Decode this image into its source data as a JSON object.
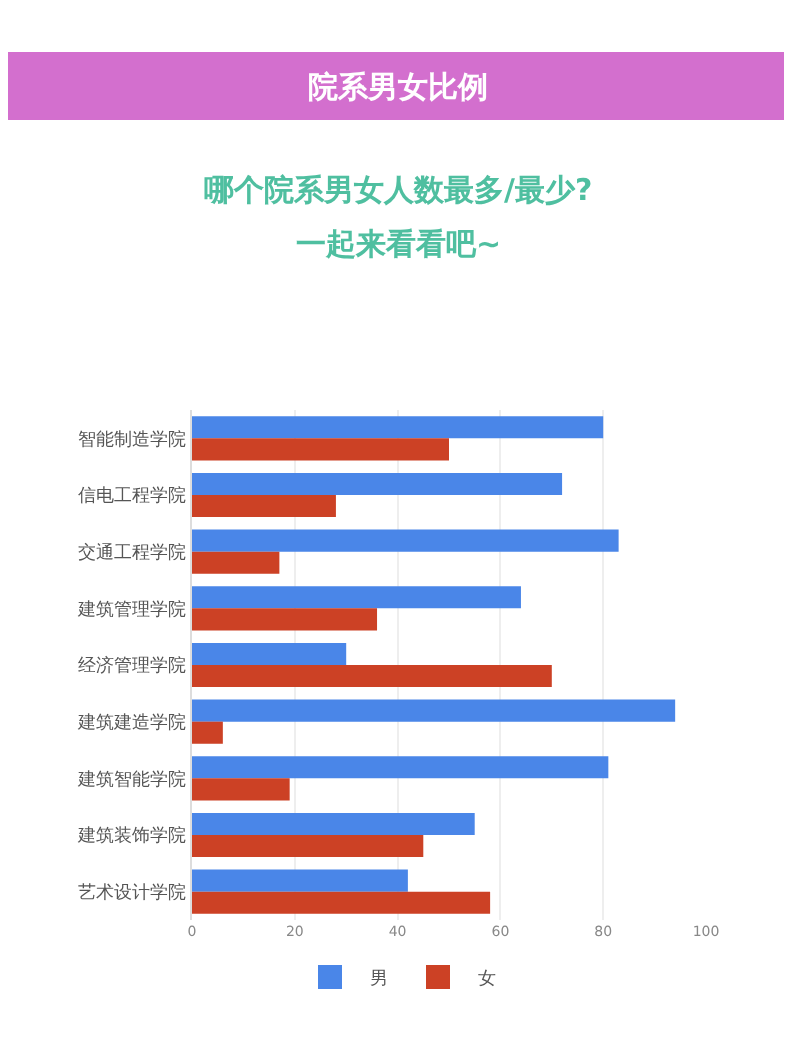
{
  "chart_data": {
    "type": "bar",
    "orientation": "horizontal",
    "title": "院系男女比例",
    "subtitle": "哪个院系男女人数最多/最少?\n一起来看看吧~",
    "categories": [
      "智能制造学院",
      "信电工程学院",
      "交通工程学院",
      "建筑管理学院",
      "经济管理学院",
      "建筑建造学院",
      "建筑智能学院",
      "建筑装饰学院",
      "艺术设计学院"
    ],
    "series": [
      {
        "name": "男",
        "color": "#4a86e8",
        "values": [
          80,
          72,
          83,
          64,
          30,
          94,
          81,
          55,
          42
        ]
      },
      {
        "name": "女",
        "color": "#cc4125",
        "values": [
          50,
          28,
          17,
          36,
          70,
          6,
          19,
          45,
          58
        ]
      }
    ],
    "xlim": [
      0,
      100
    ],
    "xticks": [
      0,
      20,
      40,
      60,
      80,
      100
    ],
    "grid": "x",
    "legend": "bottom"
  }
}
